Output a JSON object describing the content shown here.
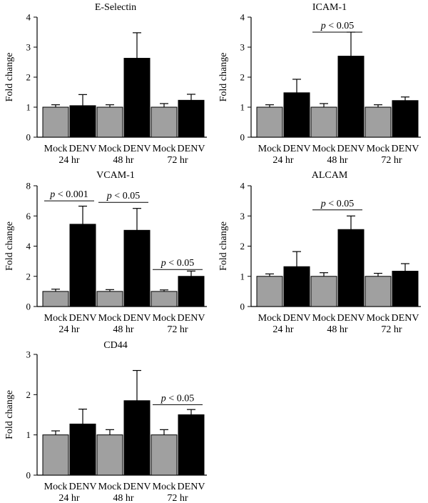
{
  "chart_data": [
    {
      "type": "bar",
      "title": "E-Selectin",
      "ylabel": "Fold change",
      "xlabel": "",
      "ylim": [
        0,
        4
      ],
      "yticks": [
        0,
        1,
        2,
        3,
        4
      ],
      "categories": [
        "Mock",
        "DENV",
        "Mock",
        "DENV",
        "Mock",
        "DENV"
      ],
      "time_labels": [
        "24 hr",
        "48 hr",
        "72 hr"
      ],
      "values": [
        1.0,
        1.05,
        1.0,
        2.63,
        1.0,
        1.23
      ],
      "errors": [
        0.08,
        0.37,
        0.08,
        0.85,
        0.12,
        0.2
      ],
      "significance": []
    },
    {
      "type": "bar",
      "title": "ICAM-1",
      "ylabel": "Fold change",
      "xlabel": "",
      "ylim": [
        0,
        4
      ],
      "yticks": [
        0,
        1,
        2,
        3,
        4
      ],
      "categories": [
        "Mock",
        "DENV",
        "Mock",
        "DENV",
        "Mock",
        "DENV"
      ],
      "time_labels": [
        "24 hr",
        "48 hr",
        "72 hr"
      ],
      "values": [
        1.0,
        1.48,
        1.0,
        2.7,
        1.0,
        1.22
      ],
      "errors": [
        0.08,
        0.45,
        0.12,
        0.8,
        0.08,
        0.12
      ],
      "significance": [
        {
          "label": "p < 0.05",
          "italic_part": "p",
          "rest": " < 0.05",
          "group": 1,
          "y": 3.5
        }
      ]
    },
    {
      "type": "bar",
      "title": "VCAM-1",
      "ylabel": "Fold change",
      "xlabel": "",
      "ylim": [
        0,
        8
      ],
      "yticks": [
        0,
        2,
        4,
        6,
        8
      ],
      "categories": [
        "Mock",
        "DENV",
        "Mock",
        "DENV",
        "Mock",
        "DENV"
      ],
      "time_labels": [
        "24 hr",
        "48 hr",
        "72 hr"
      ],
      "values": [
        1.0,
        5.45,
        1.0,
        5.05,
        1.0,
        2.0
      ],
      "errors": [
        0.15,
        1.2,
        0.12,
        1.45,
        0.1,
        0.35
      ],
      "significance": [
        {
          "label": "p < 0.001",
          "italic_part": "p",
          "rest": " < 0.001",
          "group": 0,
          "y": 7.0
        },
        {
          "label": "p < 0.05",
          "italic_part": "p",
          "rest": " < 0.05",
          "group": 1,
          "y": 6.9
        },
        {
          "label": "p < 0.05",
          "italic_part": "p",
          "rest": " < 0.05",
          "group": 2,
          "y": 2.45
        }
      ]
    },
    {
      "type": "bar",
      "title": "ALCAM",
      "ylabel": "Fold change",
      "xlabel": "",
      "ylim": [
        0,
        4
      ],
      "yticks": [
        0,
        1,
        2,
        3,
        4
      ],
      "categories": [
        "Mock",
        "DENV",
        "Mock",
        "DENV",
        "Mock",
        "DENV"
      ],
      "time_labels": [
        "24 hr",
        "48 hr",
        "72 hr"
      ],
      "values": [
        1.0,
        1.32,
        1.0,
        2.55,
        1.0,
        1.17
      ],
      "errors": [
        0.08,
        0.5,
        0.12,
        0.45,
        0.1,
        0.25
      ],
      "significance": [
        {
          "label": "p < 0.05",
          "italic_part": "p",
          "rest": " < 0.05",
          "group": 1,
          "y": 3.2
        }
      ]
    },
    {
      "type": "bar",
      "title": "CD44",
      "ylabel": "Fold change",
      "xlabel": "",
      "ylim": [
        0,
        3
      ],
      "yticks": [
        0,
        1,
        2,
        3
      ],
      "categories": [
        "Mock",
        "DENV",
        "Mock",
        "DENV",
        "Mock",
        "DENV"
      ],
      "time_labels": [
        "24 hr",
        "48 hr",
        "72 hr"
      ],
      "values": [
        1.0,
        1.27,
        1.0,
        1.85,
        1.0,
        1.5
      ],
      "errors": [
        0.1,
        0.37,
        0.13,
        0.75,
        0.13,
        0.13
      ],
      "significance": [
        {
          "label": "p < 0.05",
          "italic_part": "p",
          "rest": " < 0.05",
          "group": 2,
          "y": 1.75
        }
      ]
    }
  ],
  "colors": {
    "mock": "#a0a0a0",
    "denv": "#000000",
    "axis": "#000000"
  }
}
